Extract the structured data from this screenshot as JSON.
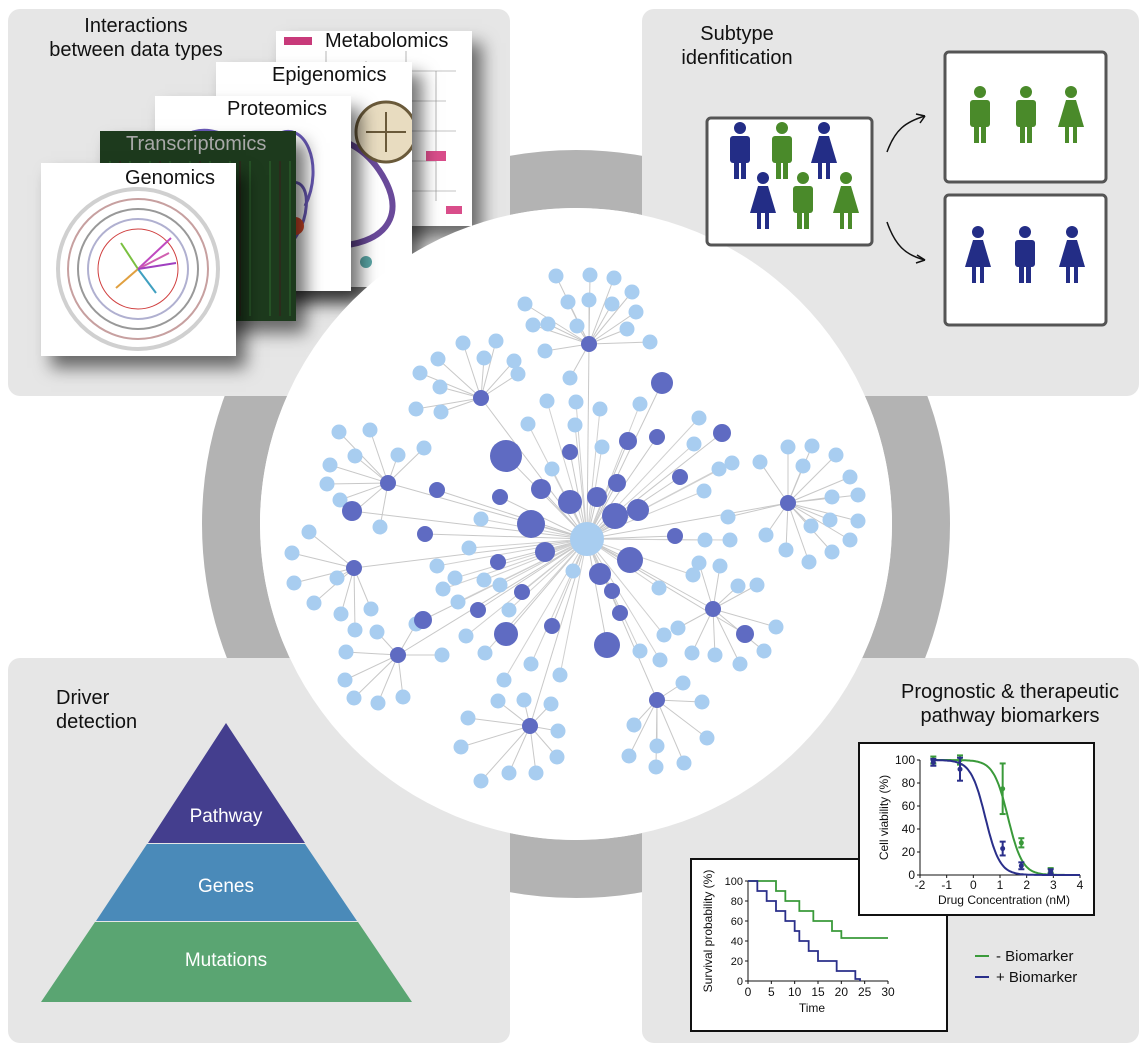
{
  "panels": {
    "interactions": {
      "title_line1": "Interactions",
      "title_line2": "between data types",
      "layers": [
        "Metabolomics",
        "Epigenomics",
        "Proteomics",
        "Transcriptomics",
        "Genomics"
      ]
    },
    "subtype": {
      "title_line1": "Subtype",
      "title_line2": "idenfitication"
    },
    "driver": {
      "title_line1": "Driver",
      "title_line2": "detection",
      "pyramid": [
        "Pathway",
        "Genes",
        "Mutations"
      ]
    },
    "biomarkers": {
      "title_line1": "Prognostic & therapeutic",
      "title_line2": "pathway biomarkers",
      "legend": [
        "- Biomarker",
        "+ Biomarker"
      ]
    }
  },
  "colors": {
    "quadrant_bg": "#e6e6e6",
    "ring": "#b3b3b3",
    "node_light": "#a8cdf0",
    "node_dark": "#5f6bc2",
    "person_green": "#4a8a2a",
    "person_blue": "#232d86",
    "pyramid_top": "#443e8e",
    "pyramid_mid": "#4a8ab9",
    "pyramid_bottom": "#5aa572",
    "series_minus": "#3a9a3a",
    "series_plus": "#2a2f8a"
  },
  "chart_data": [
    {
      "type": "line",
      "xlabel": "Drug Concentration (nM)",
      "ylabel": "Cell viability (%)",
      "xlim": [
        -2,
        4
      ],
      "ylim": [
        0,
        100
      ],
      "xticks": [
        "-2",
        "-1",
        "0",
        "1",
        "2",
        "3",
        "4"
      ],
      "yticks": [
        "0",
        "20",
        "40",
        "60",
        "80",
        "100"
      ],
      "series": [
        {
          "name": "- Biomarker",
          "x": [
            -1.5,
            -0.5,
            1.1,
            1.8,
            2.9
          ],
          "y": [
            100,
            100,
            75,
            28,
            4
          ],
          "err": [
            3,
            4,
            22,
            4,
            2
          ],
          "ic50": 1.3
        },
        {
          "name": "+ Biomarker",
          "x": [
            -1.5,
            -0.5,
            1.1,
            1.8,
            2.9
          ],
          "y": [
            98,
            92,
            23,
            8,
            3
          ],
          "err": [
            3,
            10,
            6,
            3,
            2
          ],
          "ic50": 0.45
        }
      ]
    },
    {
      "type": "line",
      "xlabel": "Time",
      "ylabel": "Survival probability (%)",
      "xlim": [
        0,
        30
      ],
      "ylim": [
        0,
        100
      ],
      "xticks": [
        "0",
        "5",
        "10",
        "15",
        "20",
        "25",
        "30"
      ],
      "yticks": [
        "0",
        "20",
        "40",
        "60",
        "80",
        "100"
      ],
      "series": [
        {
          "name": "- Biomarker",
          "steps": [
            [
              0,
              100
            ],
            [
              5,
              100
            ],
            [
              6,
              90
            ],
            [
              8,
              80
            ],
            [
              11,
              70
            ],
            [
              14,
              60
            ],
            [
              18,
              50
            ],
            [
              20,
              43
            ],
            [
              30,
              43
            ]
          ]
        },
        {
          "name": "+ Biomarker",
          "steps": [
            [
              0,
              100
            ],
            [
              2,
              90
            ],
            [
              4,
              80
            ],
            [
              6,
              70
            ],
            [
              8,
              60
            ],
            [
              10,
              50
            ],
            [
              11,
              40
            ],
            [
              13,
              30
            ],
            [
              15,
              20
            ],
            [
              19,
              10
            ],
            [
              23,
              2
            ],
            [
              24,
              0
            ]
          ]
        }
      ]
    }
  ]
}
